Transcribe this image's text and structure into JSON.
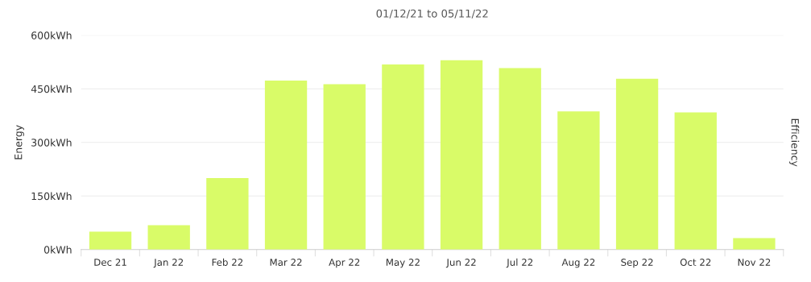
{
  "chart_data": {
    "type": "bar",
    "title": "01/12/21 to 05/11/22",
    "ylabel": "Energy",
    "y2label": "Efficiency",
    "categories": [
      "Dec 21",
      "Jan 22",
      "Feb 22",
      "Mar 22",
      "Apr 22",
      "May 22",
      "Jun 22",
      "Jul 22",
      "Aug 22",
      "Sep 22",
      "Oct 22",
      "Nov 22"
    ],
    "values": [
      50,
      68,
      200,
      473,
      463,
      518,
      530,
      508,
      387,
      478,
      384,
      32
    ],
    "color": "#d9fb68",
    "ylim": [
      0,
      600
    ],
    "yticks": [
      {
        "value": 0,
        "label": "0kWh"
      },
      {
        "value": 150,
        "label": "150kWh"
      },
      {
        "value": 300,
        "label": "300kWh"
      },
      {
        "value": 450,
        "label": "450kWh"
      },
      {
        "value": 600,
        "label": "600kWh"
      }
    ],
    "grid": "y",
    "legend": false
  }
}
